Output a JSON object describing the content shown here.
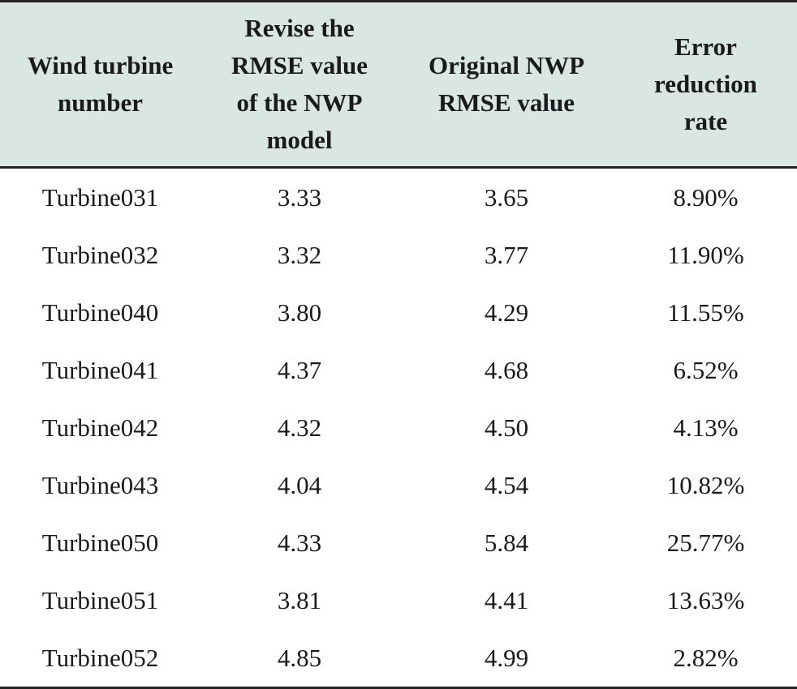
{
  "table": {
    "headers": [
      "Wind turbine\nnumber",
      "Revise the\nRMSE value\nof the NWP\nmodel",
      "Original NWP\nRMSE value",
      "Error\nreduction\nrate"
    ],
    "rows": [
      [
        "Turbine031",
        "3.33",
        "3.65",
        "8.90%"
      ],
      [
        "Turbine032",
        "3.32",
        "3.77",
        "11.90%"
      ],
      [
        "Turbine040",
        "3.80",
        "4.29",
        "11.55%"
      ],
      [
        "Turbine041",
        "4.37",
        "4.68",
        "6.52%"
      ],
      [
        "Turbine042",
        "4.32",
        "4.50",
        "4.13%"
      ],
      [
        "Turbine043",
        "4.04",
        "4.54",
        "10.82%"
      ],
      [
        "Turbine050",
        "4.33",
        "5.84",
        "25.77%"
      ],
      [
        "Turbine051",
        "3.81",
        "4.41",
        "13.63%"
      ],
      [
        "Turbine052",
        "4.85",
        "4.99",
        "2.82%"
      ]
    ]
  }
}
